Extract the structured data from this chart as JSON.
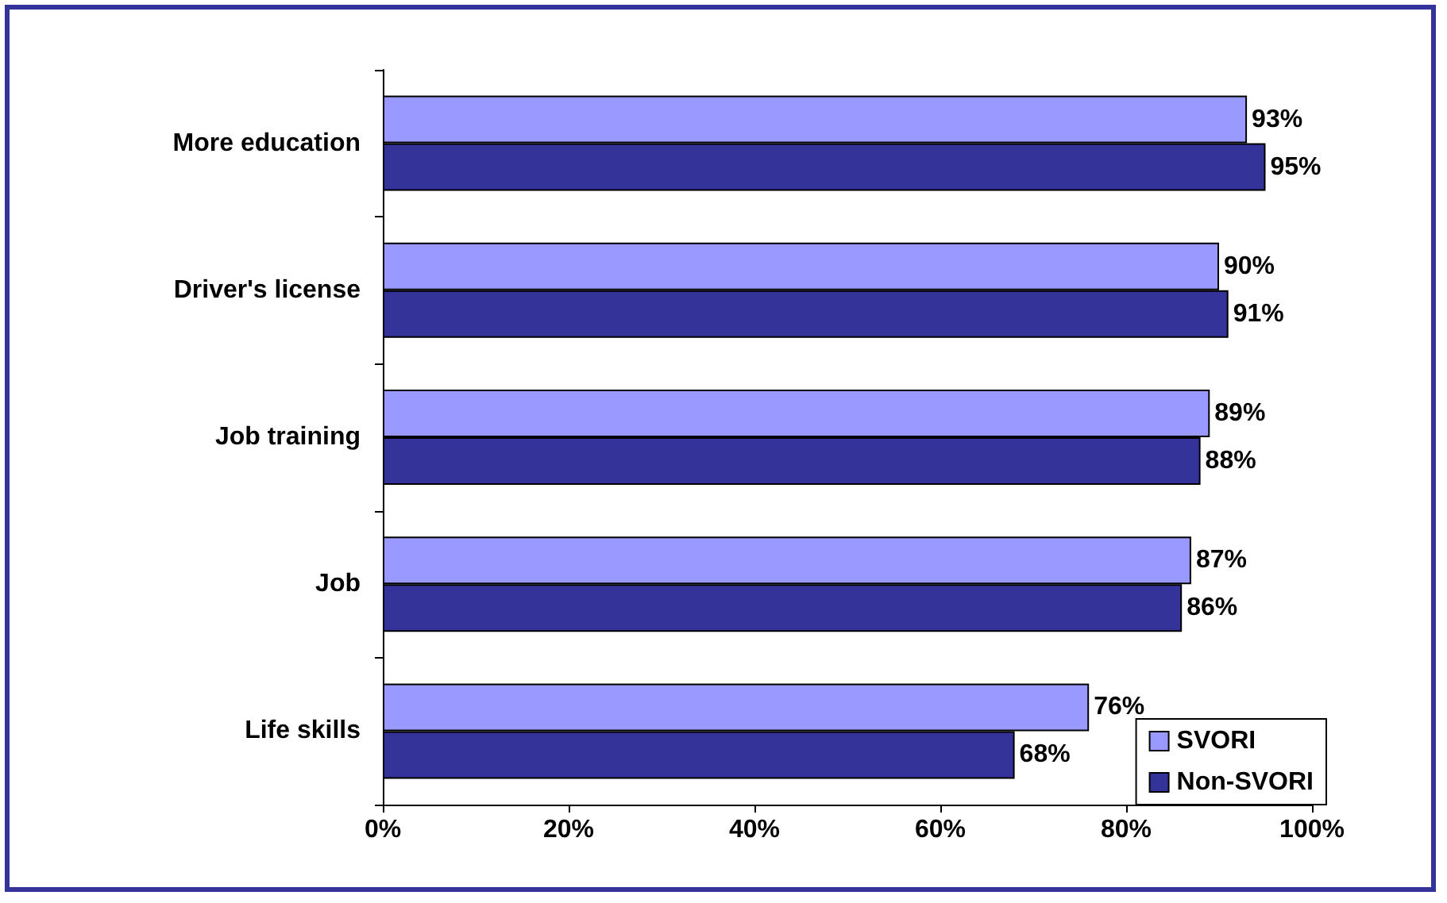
{
  "chart_data": {
    "type": "bar",
    "orientation": "horizontal",
    "categories": [
      "More education",
      "Driver's license",
      "Job training",
      "Job",
      "Life skills"
    ],
    "series": [
      {
        "name": "SVORI",
        "color": "#9999ff",
        "values": [
          93,
          90,
          89,
          87,
          76
        ],
        "value_labels": [
          "93%",
          "90%",
          "89%",
          "87%",
          "76%"
        ]
      },
      {
        "name": "Non-SVORI",
        "color": "#333399",
        "values": [
          95,
          91,
          88,
          86,
          68
        ],
        "value_labels": [
          "95%",
          "91%",
          "88%",
          "86%",
          "68%"
        ]
      }
    ],
    "xlim": [
      0,
      100
    ],
    "xticks": [
      {
        "value": 0,
        "label": "0%"
      },
      {
        "value": 20,
        "label": "20%"
      },
      {
        "value": 40,
        "label": "40%"
      },
      {
        "value": 60,
        "label": "60%"
      },
      {
        "value": 80,
        "label": "80%"
      },
      {
        "value": 100,
        "label": "100%"
      }
    ],
    "grid": false,
    "legend": "bottom right"
  }
}
